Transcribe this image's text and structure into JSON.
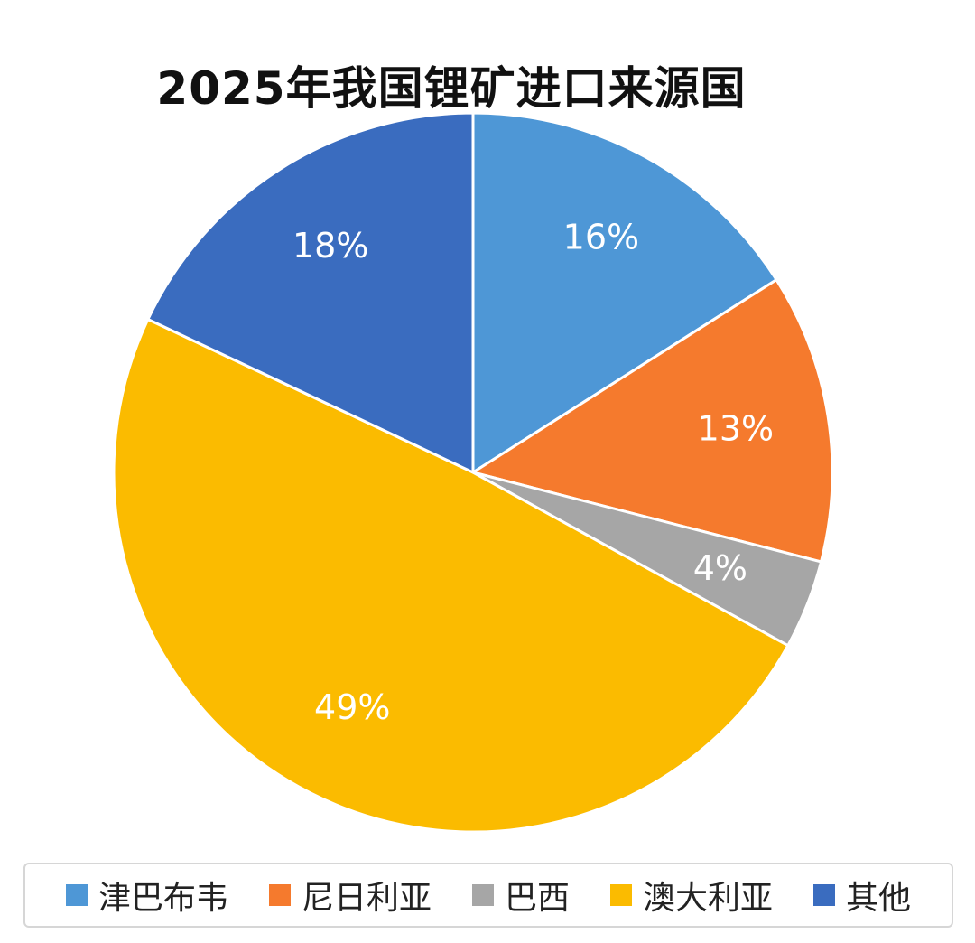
{
  "chart_data": {
    "type": "pie",
    "title": "2025年我国锂矿进口来源国",
    "legend_position": "bottom",
    "slices": [
      {
        "name": "津巴布韦",
        "value": 16,
        "label": "16%",
        "color": "#4e97d6"
      },
      {
        "name": "尼日利亚",
        "value": 13,
        "label": "13%",
        "color": "#f57a2d"
      },
      {
        "name": "巴西",
        "value": 4,
        "label": "4%",
        "color": "#a6a6a6"
      },
      {
        "name": "澳大利亚",
        "value": 49,
        "label": "49%",
        "color": "#fbbb00"
      },
      {
        "name": "其他",
        "value": 18,
        "label": "18%",
        "color": "#3a6cbf"
      }
    ]
  }
}
